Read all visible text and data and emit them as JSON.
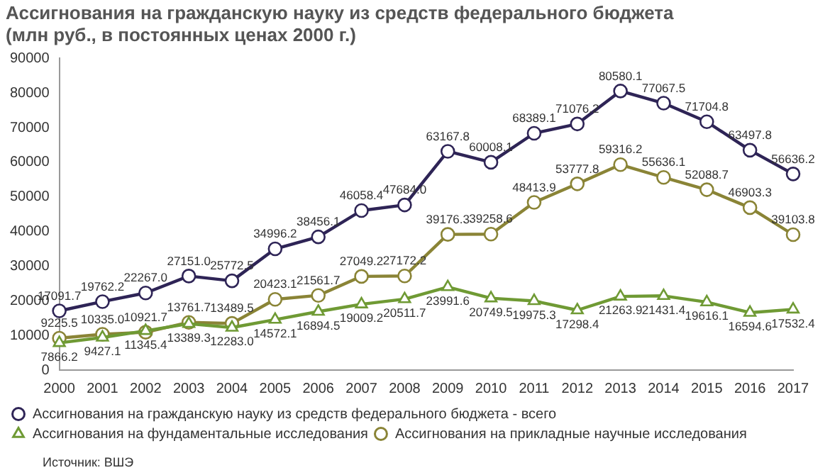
{
  "chart_data": {
    "type": "line",
    "title": "Ассигнования на гражданскую науку из средств федерального бюджета",
    "subtitle": "(млн руб., в постоянных ценах 2000 г.)",
    "categories": [
      "2000",
      "2001",
      "2002",
      "2003",
      "2004",
      "2005",
      "2006",
      "2007",
      "2008",
      "2009",
      "2010",
      "2011",
      "2012",
      "2013",
      "2014",
      "2015",
      "2016",
      "2017"
    ],
    "series": [
      {
        "name": "Ассигнования на гражданскую науку из средств федерального бюджета - всего",
        "color": "#2e2456",
        "marker": "circle",
        "values": [
          17091.7,
          19762.2,
          22267,
          27151,
          25772.5,
          34996.2,
          38456.1,
          46058.4,
          47684,
          63167.8,
          60008.1,
          68389.1,
          71076.2,
          80580.1,
          77067.5,
          71704.8,
          63497.8,
          56636.2
        ],
        "value_labels": [
          "17091.7",
          "19762.2",
          "22267.0",
          "27151.0",
          "25772.5",
          "34996.2",
          "38456.1",
          "46058.4",
          "47684.0",
          "63167.8",
          "60008.1",
          "68389.1",
          "71076.2",
          "80580.1",
          "77067.5",
          "71704.8",
          "63497.8",
          "56636.2"
        ]
      },
      {
        "name": "Ассигнования на фундаментальные исследования",
        "color": "#6f9a34",
        "marker": "triangle",
        "values": [
          7866.2,
          9427.1,
          11345.4,
          13389.3,
          12283,
          14572.1,
          16894.5,
          19009.2,
          20511.7,
          23991.6,
          20749.5,
          19975.3,
          17298.4,
          21263.9,
          21431.4,
          19616.1,
          16594.6,
          17532.4
        ],
        "value_labels": [
          "7866.2",
          "9427.1",
          "11345.4",
          "13389.3",
          "12283.0",
          "14572.1",
          "16894.5",
          "19009.2",
          "20511.7",
          "23991.6",
          "20749.5",
          "19975.3",
          "17298.4",
          "21263.9",
          "21431.4",
          "19616.1",
          "16594.6",
          "17532.4"
        ]
      },
      {
        "name": "Ассигнования на прикладные научные исследования",
        "color": "#8a8436",
        "marker": "circle",
        "values": [
          9225.5,
          10335,
          10921.7,
          13761.7,
          13489.5,
          20423.1,
          21561.7,
          27049.2,
          27172.2,
          39176.3,
          39258.6,
          48413.9,
          53777.8,
          59316.2,
          55636.1,
          52088.7,
          46903.3,
          39103.8
        ],
        "value_labels": [
          "9225.5",
          "10335.0",
          "10921.7",
          "13761.7",
          "13489.5",
          "20423.1",
          "21561.7",
          "27049.2",
          "27172.2",
          "39176.3",
          "39258.6",
          "48413.9",
          "53777.8",
          "59316.2",
          "55636.1",
          "52088.7",
          "46903.3",
          "39103.8"
        ]
      }
    ],
    "ylim": [
      0,
      90000
    ],
    "yticks": [
      0,
      10000,
      20000,
      30000,
      40000,
      50000,
      60000,
      70000,
      80000,
      90000
    ],
    "grid": false,
    "legend": "bottom",
    "line_style": "solid",
    "annotations": [
      "Источник: ВШЭ"
    ]
  }
}
